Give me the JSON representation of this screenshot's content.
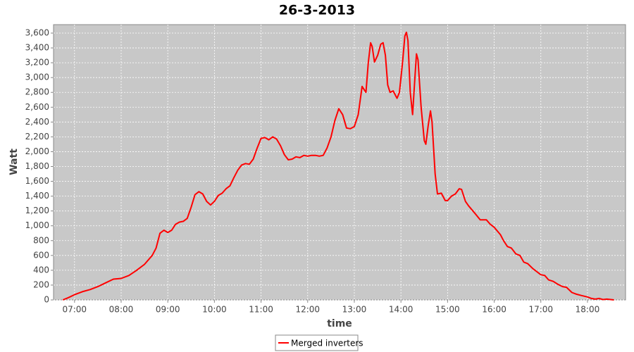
{
  "chart_data": {
    "type": "line",
    "title": "26-3-2013",
    "x_label": "time",
    "y_label": "Watt",
    "x": [
      "06:45",
      "06:52",
      "07:00",
      "07:10",
      "07:20",
      "07:30",
      "07:40",
      "07:50",
      "08:00",
      "08:10",
      "08:20",
      "08:30",
      "08:40",
      "08:45",
      "08:50",
      "08:55",
      "09:00",
      "09:05",
      "09:10",
      "09:15",
      "09:20",
      "09:25",
      "09:30",
      "09:35",
      "09:40",
      "09:45",
      "09:50",
      "09:55",
      "10:00",
      "10:05",
      "10:10",
      "10:15",
      "10:20",
      "10:25",
      "10:30",
      "10:35",
      "10:40",
      "10:45",
      "10:50",
      "10:55",
      "11:00",
      "11:05",
      "11:10",
      "11:15",
      "11:20",
      "11:25",
      "11:30",
      "11:35",
      "11:40",
      "11:45",
      "11:50",
      "11:55",
      "12:00",
      "12:05",
      "12:10",
      "12:15",
      "12:20",
      "12:25",
      "12:30",
      "12:35",
      "12:40",
      "12:45",
      "12:50",
      "12:55",
      "13:00",
      "13:05",
      "13:10",
      "13:15",
      "13:18",
      "13:21",
      "13:23",
      "13:26",
      "13:30",
      "13:34",
      "13:37",
      "13:40",
      "13:43",
      "13:46",
      "13:50",
      "13:55",
      "13:58",
      "14:02",
      "14:05",
      "14:07",
      "14:09",
      "14:12",
      "14:15",
      "14:18",
      "14:20",
      "14:22",
      "14:26",
      "14:30",
      "14:32",
      "14:35",
      "14:38",
      "14:40",
      "14:44",
      "14:47",
      "14:52",
      "14:57",
      "15:00",
      "15:05",
      "15:10",
      "15:15",
      "15:18",
      "15:23",
      "15:27",
      "15:35",
      "15:42",
      "15:50",
      "15:55",
      "16:00",
      "16:08",
      "16:12",
      "16:17",
      "16:22",
      "16:28",
      "16:33",
      "16:38",
      "16:43",
      "16:50",
      "16:55",
      "17:00",
      "17:05",
      "17:10",
      "17:16",
      "17:22",
      "17:28",
      "17:33",
      "17:40",
      "17:45",
      "17:52",
      "18:00",
      "18:05",
      "18:10",
      "18:15",
      "18:20",
      "18:25",
      "18:30",
      "18:34"
    ],
    "series": [
      {
        "name": "Merged inverters",
        "color": "#ff0000",
        "values": [
          0,
          30,
          70,
          110,
          140,
          180,
          230,
          280,
          290,
          330,
          400,
          480,
          600,
          700,
          900,
          940,
          910,
          940,
          1020,
          1050,
          1060,
          1100,
          1250,
          1420,
          1460,
          1430,
          1330,
          1280,
          1330,
          1410,
          1440,
          1500,
          1540,
          1650,
          1750,
          1820,
          1840,
          1830,
          1900,
          2050,
          2180,
          2190,
          2160,
          2200,
          2170,
          2080,
          1960,
          1890,
          1900,
          1930,
          1920,
          1950,
          1940,
          1950,
          1950,
          1940,
          1950,
          2050,
          2200,
          2420,
          2580,
          2500,
          2320,
          2310,
          2340,
          2500,
          2880,
          2800,
          3200,
          3470,
          3420,
          3210,
          3300,
          3450,
          3470,
          3300,
          2900,
          2800,
          2820,
          2720,
          2800,
          3200,
          3560,
          3610,
          3500,
          2800,
          2500,
          3000,
          3320,
          3240,
          2600,
          2150,
          2100,
          2350,
          2550,
          2400,
          1700,
          1430,
          1440,
          1340,
          1340,
          1400,
          1430,
          1500,
          1490,
          1330,
          1270,
          1170,
          1080,
          1080,
          1020,
          980,
          880,
          800,
          720,
          700,
          620,
          600,
          510,
          490,
          420,
          380,
          340,
          330,
          270,
          250,
          210,
          180,
          170,
          100,
          80,
          60,
          40,
          20,
          10,
          20,
          5,
          10,
          5,
          0
        ]
      }
    ],
    "xlim": [
      "06:33",
      "18:49"
    ],
    "xticks": [
      "07:00",
      "08:00",
      "09:00",
      "10:00",
      "11:00",
      "12:00",
      "13:00",
      "14:00",
      "15:00",
      "16:00",
      "17:00",
      "18:00"
    ],
    "ylim": [
      0,
      3714
    ],
    "yticks": [
      0,
      200,
      400,
      600,
      800,
      {
        "value": 1000,
        "label": "1,000"
      },
      {
        "value": 1200,
        "label": "1,200"
      },
      {
        "value": 1400,
        "label": "1,400"
      },
      {
        "value": 1600,
        "label": "1,600"
      },
      {
        "value": 1800,
        "label": "1,800"
      },
      {
        "value": 2000,
        "label": "2,000"
      },
      {
        "value": 2200,
        "label": "2,200"
      },
      {
        "value": 2400,
        "label": "2,400"
      },
      {
        "value": 2600,
        "label": "2,600"
      },
      {
        "value": 2800,
        "label": "2,800"
      },
      {
        "value": 3000,
        "label": "3,000"
      },
      {
        "value": 3200,
        "label": "3,200"
      },
      {
        "value": 3400,
        "label": "3,400"
      },
      {
        "value": 3600,
        "label": "3,600"
      }
    ],
    "grid": true
  }
}
